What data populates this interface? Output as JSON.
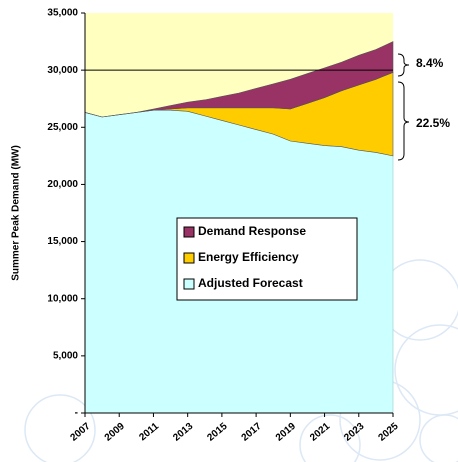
{
  "chart_data": {
    "type": "stacked_area",
    "y_label": "Summer Peak Demand (MW)",
    "x": [
      2007,
      2008,
      2009,
      2010,
      2011,
      2012,
      2013,
      2014,
      2015,
      2016,
      2017,
      2018,
      2019,
      2020,
      2021,
      2022,
      2023,
      2024,
      2025
    ],
    "xlim": [
      2007,
      2025
    ],
    "xticks": [
      2007,
      2009,
      2011,
      2013,
      2015,
      2017,
      2019,
      2021,
      2023,
      2025
    ],
    "ylim": [
      0,
      35000
    ],
    "yticks": [
      {
        "value": 0,
        "label": "-"
      },
      {
        "value": 5000,
        "label": "5,000"
      },
      {
        "value": 10000,
        "label": "10,000"
      },
      {
        "value": 15000,
        "label": "15,000"
      },
      {
        "value": 20000,
        "label": "20,000"
      },
      {
        "value": 25000,
        "label": "25,000"
      },
      {
        "value": 30000,
        "label": "30,000"
      },
      {
        "value": 35000,
        "label": "35,000"
      }
    ],
    "reference_lines": [
      30000
    ],
    "background_color": "#ffffc0",
    "series": [
      {
        "name": "Adjusted Forecast",
        "color": "#ccffff",
        "values": [
          26300,
          25900,
          26100,
          26300,
          26500,
          26500,
          26400,
          26000,
          25600,
          25200,
          24800,
          24400,
          23800,
          23600,
          23400,
          23300,
          23000,
          22800,
          22500
        ]
      },
      {
        "name": "Energy Efficiency",
        "color": "#ffcc00",
        "values": [
          0,
          0,
          0,
          0,
          0,
          100,
          300,
          700,
          1100,
          1500,
          1900,
          2300,
          2800,
          3500,
          4200,
          4900,
          5700,
          6400,
          7300
        ]
      },
      {
        "name": "Demand Response",
        "color": "#993366",
        "values": [
          0,
          0,
          0,
          0,
          100,
          300,
          500,
          700,
          1000,
          1300,
          1700,
          2100,
          2600,
          2600,
          2600,
          2500,
          2600,
          2600,
          2700
        ]
      }
    ],
    "annotations": [
      "8.4%",
      "22.5%"
    ]
  }
}
